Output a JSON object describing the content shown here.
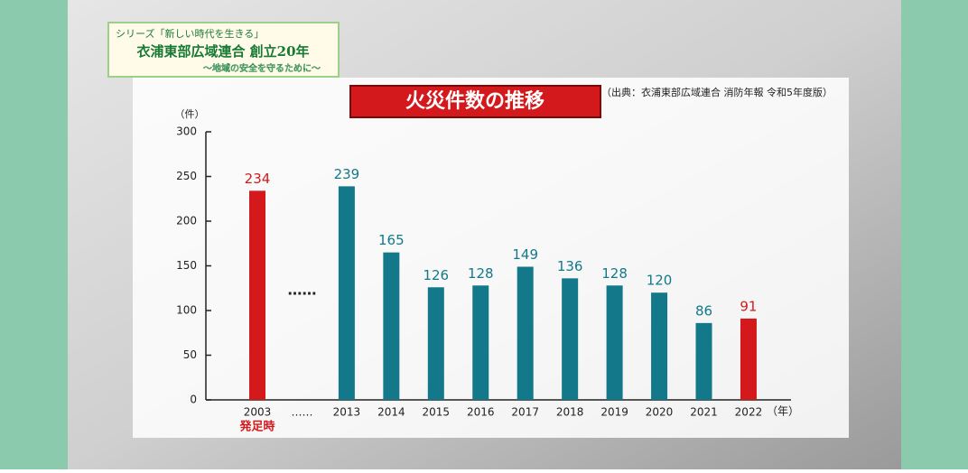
{
  "caption": {
    "series": "シリーズ「新しい時代を生きる」",
    "title": "衣浦東部広域連合 創立20年",
    "subtitle": "〜地域の安全を守るために〜"
  },
  "chart_data": {
    "type": "bar",
    "title": "火災件数の推移",
    "source": "（出典：衣浦東部広域連合 消防年報 令和5年度版）",
    "y_unit": "（件）",
    "x_unit": "（年）",
    "categories": [
      "2003",
      "……",
      "2013",
      "2014",
      "2015",
      "2016",
      "2017",
      "2018",
      "2019",
      "2020",
      "2021",
      "2022"
    ],
    "values": [
      234,
      null,
      239,
      165,
      126,
      128,
      149,
      136,
      128,
      120,
      86,
      91
    ],
    "colors": [
      "#d3191c",
      null,
      "#13798a",
      "#13798a",
      "#13798a",
      "#13798a",
      "#13798a",
      "#13798a",
      "#13798a",
      "#13798a",
      "#13798a",
      "#d3191c"
    ],
    "annotations": [
      {
        "text": "発足時",
        "category": 0
      },
      {
        "text": "……",
        "category": 1
      }
    ],
    "ylim": [
      0,
      300
    ],
    "yticks": [
      0,
      50,
      100,
      150,
      200,
      250,
      300
    ],
    "grid": false
  }
}
